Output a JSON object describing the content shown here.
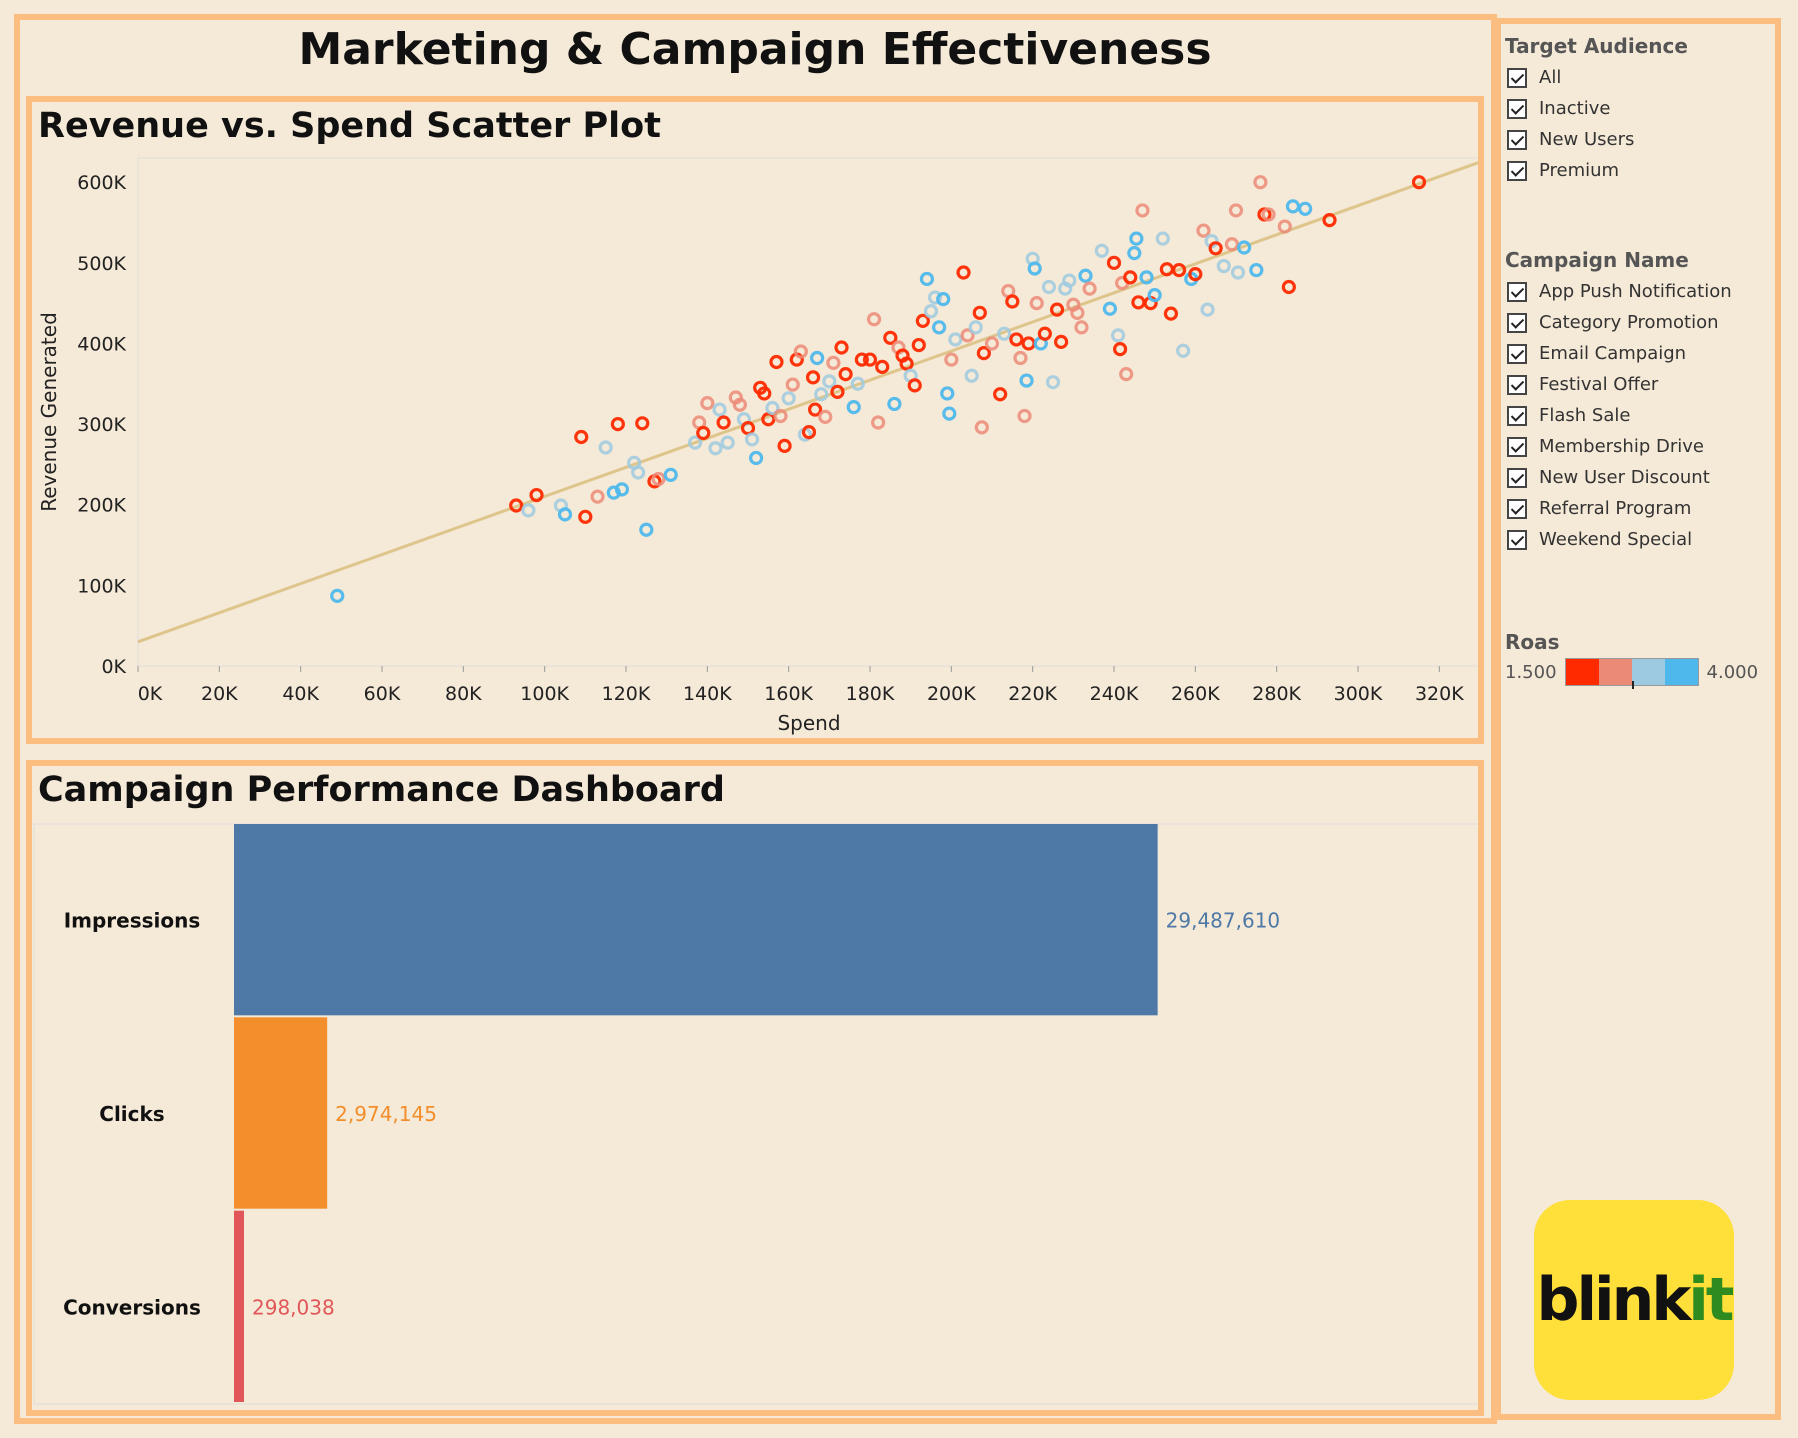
{
  "title": "Marketing & Campaign Effectiveness",
  "scatter": {
    "panel_title": "Revenue vs. Spend Scatter Plot",
    "xlabel": "Spend",
    "ylabel": "Revenue Generated",
    "x_ticks": [
      "0K",
      "20K",
      "40K",
      "60K",
      "80K",
      "100K",
      "120K",
      "140K",
      "160K",
      "180K",
      "200K",
      "220K",
      "240K",
      "260K",
      "280K",
      "300K",
      "320K"
    ],
    "y_ticks": [
      "0K",
      "100K",
      "200K",
      "300K",
      "400K",
      "500K",
      "600K"
    ]
  },
  "funnel": {
    "panel_title": "Campaign Performance Dashboard",
    "categories": [
      "Impressions",
      "Clicks",
      "Conversions"
    ],
    "value_labels": [
      "29,487,610",
      "2,974,145",
      "298,038"
    ]
  },
  "filters": {
    "audience": {
      "title": "Target Audience",
      "items": [
        "All",
        "Inactive",
        "New Users",
        "Premium"
      ]
    },
    "campaign": {
      "title": "Campaign Name",
      "items": [
        "App Push Notification",
        "Category Promotion",
        "Email Campaign",
        "Festival Offer",
        "Flash Sale",
        "Membership Drive",
        "New User Discount",
        "Referral Program",
        "Weekend Special"
      ]
    },
    "roas": {
      "title": "Roas",
      "min_label": "1.500",
      "max_label": "4.000"
    }
  },
  "logo": {
    "text_a": "blink",
    "text_b": "it"
  },
  "colors": {
    "background": "#f5e9d7",
    "border": "#fcbd80",
    "trend": "#ddc58c",
    "roas_scale": [
      "#ff2a00",
      "#ec8a78",
      "#9ecae1",
      "#4eb8ec"
    ],
    "impressions": "#4e79a7",
    "clicks": "#f28e2b",
    "conversions": "#e15759",
    "logo_bg": "#ffe03a",
    "logo_green": "#2e8b1f"
  },
  "chart_data": [
    {
      "type": "scatter",
      "title": "Revenue vs. Spend Scatter Plot",
      "xlabel": "Spend",
      "ylabel": "Revenue Generated",
      "xlim": [
        0,
        330000
      ],
      "ylim": [
        0,
        630000
      ],
      "trendline": {
        "x": [
          0,
          330000
        ],
        "y": [
          30000,
          625000
        ]
      },
      "color_by": "Roas",
      "points": [
        {
          "x": 49000,
          "y": 87000,
          "c": 3
        },
        {
          "x": 93000,
          "y": 199000,
          "c": 0
        },
        {
          "x": 96000,
          "y": 193000,
          "c": 2
        },
        {
          "x": 98000,
          "y": 212000,
          "c": 0
        },
        {
          "x": 104000,
          "y": 199000,
          "c": 2
        },
        {
          "x": 105000,
          "y": 188000,
          "c": 3
        },
        {
          "x": 109000,
          "y": 284000,
          "c": 0
        },
        {
          "x": 110000,
          "y": 185000,
          "c": 0
        },
        {
          "x": 113000,
          "y": 210000,
          "c": 1
        },
        {
          "x": 115000,
          "y": 271000,
          "c": 2
        },
        {
          "x": 117000,
          "y": 215000,
          "c": 3
        },
        {
          "x": 118000,
          "y": 300000,
          "c": 0
        },
        {
          "x": 119000,
          "y": 219000,
          "c": 3
        },
        {
          "x": 122000,
          "y": 252000,
          "c": 2
        },
        {
          "x": 123000,
          "y": 240000,
          "c": 2
        },
        {
          "x": 124000,
          "y": 301000,
          "c": 0
        },
        {
          "x": 125000,
          "y": 169000,
          "c": 3
        },
        {
          "x": 127000,
          "y": 229000,
          "c": 0
        },
        {
          "x": 128000,
          "y": 232000,
          "c": 1
        },
        {
          "x": 131000,
          "y": 237000,
          "c": 3
        },
        {
          "x": 137000,
          "y": 277000,
          "c": 2
        },
        {
          "x": 138000,
          "y": 302000,
          "c": 1
        },
        {
          "x": 139000,
          "y": 289000,
          "c": 0
        },
        {
          "x": 140000,
          "y": 326000,
          "c": 1
        },
        {
          "x": 142000,
          "y": 270000,
          "c": 2
        },
        {
          "x": 143000,
          "y": 318000,
          "c": 2
        },
        {
          "x": 144000,
          "y": 302000,
          "c": 0
        },
        {
          "x": 145000,
          "y": 277000,
          "c": 2
        },
        {
          "x": 147000,
          "y": 333000,
          "c": 1
        },
        {
          "x": 148000,
          "y": 324000,
          "c": 1
        },
        {
          "x": 149000,
          "y": 306000,
          "c": 2
        },
        {
          "x": 150000,
          "y": 295000,
          "c": 0
        },
        {
          "x": 151000,
          "y": 281000,
          "c": 2
        },
        {
          "x": 152000,
          "y": 258000,
          "c": 3
        },
        {
          "x": 153000,
          "y": 345000,
          "c": 0
        },
        {
          "x": 154000,
          "y": 338000,
          "c": 0
        },
        {
          "x": 155000,
          "y": 306000,
          "c": 0
        },
        {
          "x": 156000,
          "y": 320000,
          "c": 2
        },
        {
          "x": 157000,
          "y": 377000,
          "c": 0
        },
        {
          "x": 158000,
          "y": 310000,
          "c": 1
        },
        {
          "x": 159000,
          "y": 273000,
          "c": 0
        },
        {
          "x": 160000,
          "y": 332000,
          "c": 2
        },
        {
          "x": 161000,
          "y": 349000,
          "c": 1
        },
        {
          "x": 162000,
          "y": 380000,
          "c": 0
        },
        {
          "x": 163000,
          "y": 390000,
          "c": 1
        },
        {
          "x": 164000,
          "y": 287000,
          "c": 2
        },
        {
          "x": 165000,
          "y": 290000,
          "c": 0
        },
        {
          "x": 166000,
          "y": 358000,
          "c": 0
        },
        {
          "x": 166500,
          "y": 318000,
          "c": 0
        },
        {
          "x": 167000,
          "y": 382000,
          "c": 3
        },
        {
          "x": 168000,
          "y": 337000,
          "c": 2
        },
        {
          "x": 169000,
          "y": 309000,
          "c": 1
        },
        {
          "x": 170000,
          "y": 353000,
          "c": 2
        },
        {
          "x": 171000,
          "y": 376000,
          "c": 1
        },
        {
          "x": 172000,
          "y": 340000,
          "c": 0
        },
        {
          "x": 173000,
          "y": 395000,
          "c": 0
        },
        {
          "x": 174000,
          "y": 362000,
          "c": 0
        },
        {
          "x": 176000,
          "y": 321000,
          "c": 3
        },
        {
          "x": 177000,
          "y": 350000,
          "c": 2
        },
        {
          "x": 178000,
          "y": 380000,
          "c": 0
        },
        {
          "x": 180000,
          "y": 380000,
          "c": 0
        },
        {
          "x": 181000,
          "y": 430000,
          "c": 1
        },
        {
          "x": 182000,
          "y": 302000,
          "c": 1
        },
        {
          "x": 183000,
          "y": 371000,
          "c": 0
        },
        {
          "x": 185000,
          "y": 407000,
          "c": 0
        },
        {
          "x": 186000,
          "y": 325000,
          "c": 3
        },
        {
          "x": 187000,
          "y": 395000,
          "c": 1
        },
        {
          "x": 188000,
          "y": 385000,
          "c": 0
        },
        {
          "x": 189000,
          "y": 375000,
          "c": 0
        },
        {
          "x": 190000,
          "y": 360000,
          "c": 2
        },
        {
          "x": 191000,
          "y": 348000,
          "c": 0
        },
        {
          "x": 192000,
          "y": 398000,
          "c": 0
        },
        {
          "x": 193000,
          "y": 428000,
          "c": 0
        },
        {
          "x": 194000,
          "y": 480000,
          "c": 3
        },
        {
          "x": 195000,
          "y": 440000,
          "c": 2
        },
        {
          "x": 196000,
          "y": 457000,
          "c": 2
        },
        {
          "x": 197000,
          "y": 420000,
          "c": 3
        },
        {
          "x": 198000,
          "y": 455000,
          "c": 3
        },
        {
          "x": 199000,
          "y": 338000,
          "c": 3
        },
        {
          "x": 199500,
          "y": 313000,
          "c": 3
        },
        {
          "x": 200000,
          "y": 380000,
          "c": 1
        },
        {
          "x": 201000,
          "y": 405000,
          "c": 2
        },
        {
          "x": 203000,
          "y": 488000,
          "c": 0
        },
        {
          "x": 204000,
          "y": 410000,
          "c": 1
        },
        {
          "x": 205000,
          "y": 360000,
          "c": 2
        },
        {
          "x": 206000,
          "y": 420000,
          "c": 2
        },
        {
          "x": 207000,
          "y": 438000,
          "c": 0
        },
        {
          "x": 207500,
          "y": 296000,
          "c": 1
        },
        {
          "x": 208000,
          "y": 388000,
          "c": 0
        },
        {
          "x": 210000,
          "y": 400000,
          "c": 1
        },
        {
          "x": 212000,
          "y": 337000,
          "c": 0
        },
        {
          "x": 213000,
          "y": 412000,
          "c": 2
        },
        {
          "x": 214000,
          "y": 465000,
          "c": 1
        },
        {
          "x": 215000,
          "y": 452000,
          "c": 0
        },
        {
          "x": 216000,
          "y": 405000,
          "c": 0
        },
        {
          "x": 217000,
          "y": 382000,
          "c": 1
        },
        {
          "x": 218000,
          "y": 310000,
          "c": 1
        },
        {
          "x": 218500,
          "y": 354000,
          "c": 3
        },
        {
          "x": 219000,
          "y": 400000,
          "c": 0
        },
        {
          "x": 220000,
          "y": 505000,
          "c": 2
        },
        {
          "x": 220500,
          "y": 493000,
          "c": 3
        },
        {
          "x": 221000,
          "y": 450000,
          "c": 1
        },
        {
          "x": 222000,
          "y": 400000,
          "c": 3
        },
        {
          "x": 223000,
          "y": 412000,
          "c": 0
        },
        {
          "x": 224000,
          "y": 470000,
          "c": 2
        },
        {
          "x": 225000,
          "y": 352000,
          "c": 2
        },
        {
          "x": 226000,
          "y": 442000,
          "c": 0
        },
        {
          "x": 227000,
          "y": 402000,
          "c": 0
        },
        {
          "x": 228000,
          "y": 468000,
          "c": 2
        },
        {
          "x": 229000,
          "y": 478000,
          "c": 2
        },
        {
          "x": 230000,
          "y": 448000,
          "c": 1
        },
        {
          "x": 231000,
          "y": 438000,
          "c": 1
        },
        {
          "x": 232000,
          "y": 420000,
          "c": 1
        },
        {
          "x": 233000,
          "y": 484000,
          "c": 3
        },
        {
          "x": 234000,
          "y": 468000,
          "c": 1
        },
        {
          "x": 237000,
          "y": 515000,
          "c": 2
        },
        {
          "x": 239000,
          "y": 443000,
          "c": 3
        },
        {
          "x": 240000,
          "y": 500000,
          "c": 0
        },
        {
          "x": 241000,
          "y": 410000,
          "c": 2
        },
        {
          "x": 241500,
          "y": 393000,
          "c": 0
        },
        {
          "x": 242000,
          "y": 475000,
          "c": 1
        },
        {
          "x": 243000,
          "y": 362000,
          "c": 1
        },
        {
          "x": 244000,
          "y": 482000,
          "c": 0
        },
        {
          "x": 245000,
          "y": 512000,
          "c": 3
        },
        {
          "x": 245500,
          "y": 530000,
          "c": 3
        },
        {
          "x": 246000,
          "y": 451000,
          "c": 0
        },
        {
          "x": 247000,
          "y": 565000,
          "c": 1
        },
        {
          "x": 248000,
          "y": 482000,
          "c": 3
        },
        {
          "x": 249000,
          "y": 450000,
          "c": 0
        },
        {
          "x": 250000,
          "y": 460000,
          "c": 3
        },
        {
          "x": 252000,
          "y": 530000,
          "c": 2
        },
        {
          "x": 253000,
          "y": 492000,
          "c": 0
        },
        {
          "x": 254000,
          "y": 437000,
          "c": 0
        },
        {
          "x": 256000,
          "y": 491000,
          "c": 0
        },
        {
          "x": 257000,
          "y": 391000,
          "c": 2
        },
        {
          "x": 259000,
          "y": 480000,
          "c": 3
        },
        {
          "x": 260000,
          "y": 486000,
          "c": 0
        },
        {
          "x": 262000,
          "y": 540000,
          "c": 1
        },
        {
          "x": 263000,
          "y": 442000,
          "c": 2
        },
        {
          "x": 264000,
          "y": 527000,
          "c": 2
        },
        {
          "x": 265000,
          "y": 518000,
          "c": 0
        },
        {
          "x": 267000,
          "y": 496000,
          "c": 2
        },
        {
          "x": 269000,
          "y": 523000,
          "c": 1
        },
        {
          "x": 270000,
          "y": 565000,
          "c": 1
        },
        {
          "x": 270500,
          "y": 488000,
          "c": 2
        },
        {
          "x": 272000,
          "y": 519000,
          "c": 3
        },
        {
          "x": 275000,
          "y": 491000,
          "c": 3
        },
        {
          "x": 276000,
          "y": 600000,
          "c": 1
        },
        {
          "x": 277000,
          "y": 560000,
          "c": 0
        },
        {
          "x": 278000,
          "y": 560000,
          "c": 1
        },
        {
          "x": 282000,
          "y": 545000,
          "c": 1
        },
        {
          "x": 283000,
          "y": 470000,
          "c": 0
        },
        {
          "x": 284000,
          "y": 570000,
          "c": 3
        },
        {
          "x": 287000,
          "y": 567000,
          "c": 3
        },
        {
          "x": 293000,
          "y": 553000,
          "c": 0
        },
        {
          "x": 315000,
          "y": 600000,
          "c": 0
        }
      ]
    },
    {
      "type": "bar",
      "title": "Campaign Performance Dashboard",
      "orientation": "horizontal",
      "categories": [
        "Impressions",
        "Clicks",
        "Conversions"
      ],
      "values": [
        29487610,
        2974145,
        298038
      ],
      "xlim": [
        0,
        34000000
      ]
    }
  ]
}
